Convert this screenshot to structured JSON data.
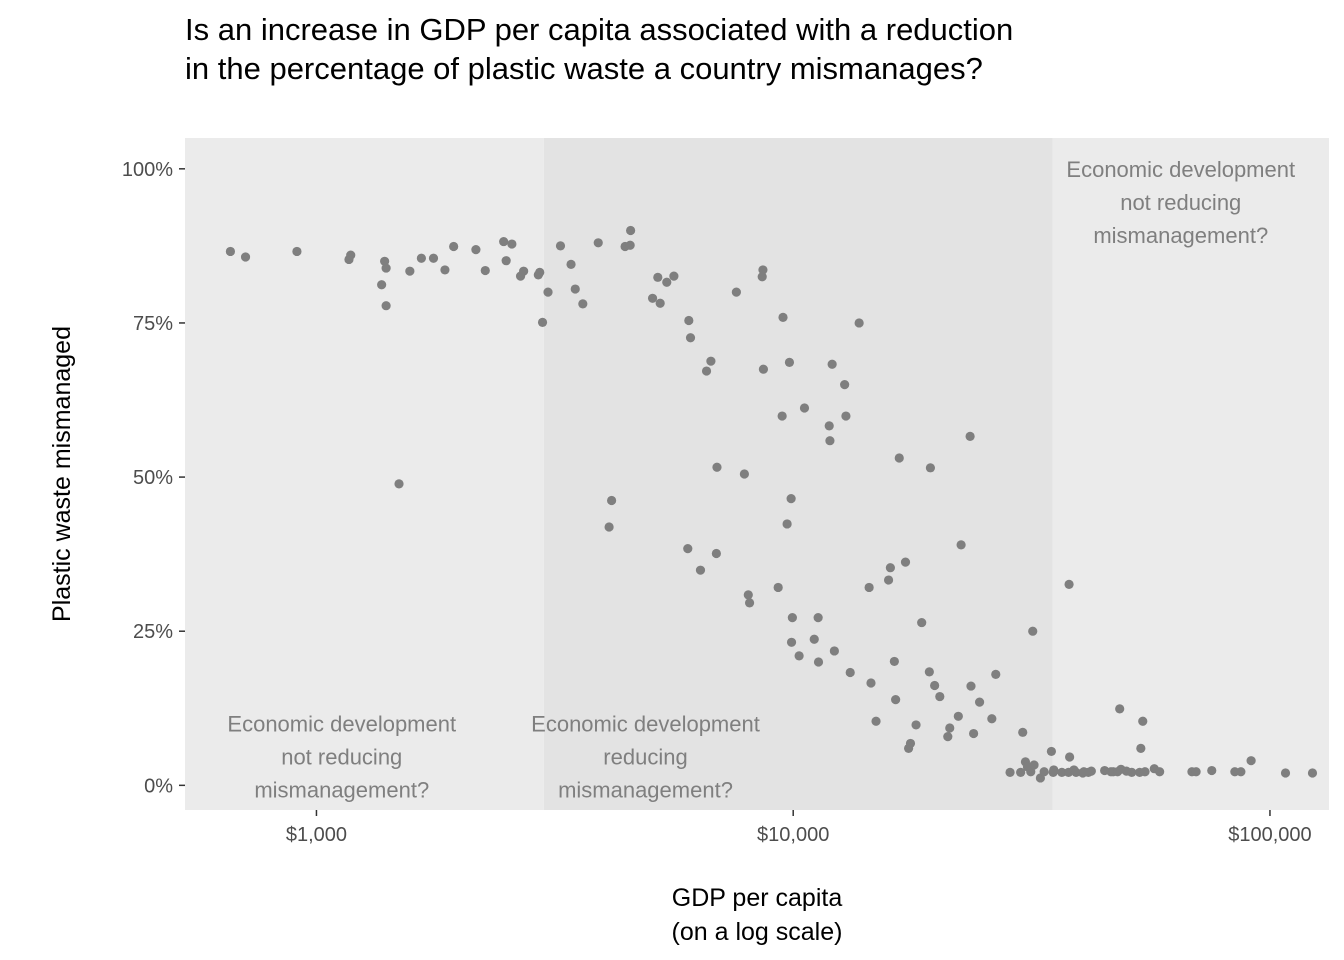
{
  "chart_data": {
    "type": "scatter",
    "title_lines": [
      "Is an increase in GDP per capita associated with a reduction",
      "in the percentage of plastic waste a country mismanages?"
    ],
    "xlabel_lines": [
      "GDP per capita",
      "(on a log scale)"
    ],
    "ylabel": "Plastic waste mismanaged",
    "x_scale": "log10",
    "xlim": [
      530,
      133000
    ],
    "ylim": [
      -0.04,
      1.05
    ],
    "x_ticks": [
      {
        "value": 1000,
        "label": "$1,000"
      },
      {
        "value": 10000,
        "label": "$10,000"
      },
      {
        "value": 100000,
        "label": "$100,000"
      }
    ],
    "y_ticks": [
      {
        "value": 0,
        "label": "0%"
      },
      {
        "value": 0.25,
        "label": "25%"
      },
      {
        "value": 0.5,
        "label": "50%"
      },
      {
        "value": 0.75,
        "label": "75%"
      },
      {
        "value": 1.0,
        "label": "100%"
      }
    ],
    "regions": [
      {
        "x_from": 530,
        "x_to": 3000,
        "fill": "#ebebeb",
        "annotation_lines": [
          "Economic development",
          "not reducing",
          "mismanagement?"
        ],
        "annotation_x": 1130,
        "annotation_y_top": 0.1
      },
      {
        "x_from": 3000,
        "x_to": 35000,
        "fill": "#e3e3e3",
        "annotation_lines": [
          "Economic development",
          "reducing",
          "mismanagement?"
        ],
        "annotation_x": 4900,
        "annotation_y_top": 0.1
      },
      {
        "x_from": 35000,
        "x_to": 133000,
        "fill": "#ebebeb",
        "annotation_lines": [
          "Economic development",
          "not reducing",
          "mismanagement?"
        ],
        "annotation_x": 65000,
        "annotation_y_top": 1.0
      }
    ],
    "point_color": "#7f7f7f",
    "grid": false,
    "legend": "none",
    "points": [
      [
        660,
        0.866
      ],
      [
        710,
        0.857
      ],
      [
        910,
        0.866
      ],
      [
        1170,
        0.853
      ],
      [
        1180,
        0.86
      ],
      [
        1370,
        0.812
      ],
      [
        1390,
        0.85
      ],
      [
        1400,
        0.839
      ],
      [
        1400,
        0.778
      ],
      [
        1490,
        0.489
      ],
      [
        1570,
        0.834
      ],
      [
        1660,
        0.855
      ],
      [
        1760,
        0.855
      ],
      [
        1860,
        0.836
      ],
      [
        1940,
        0.874
      ],
      [
        2160,
        0.869
      ],
      [
        2260,
        0.835
      ],
      [
        2470,
        0.882
      ],
      [
        2500,
        0.851
      ],
      [
        2570,
        0.878
      ],
      [
        2680,
        0.826
      ],
      [
        2720,
        0.834
      ],
      [
        2920,
        0.828
      ],
      [
        2940,
        0.832
      ],
      [
        2980,
        0.751
      ],
      [
        3060,
        0.8
      ],
      [
        3250,
        0.875
      ],
      [
        3420,
        0.845
      ],
      [
        3490,
        0.805
      ],
      [
        3620,
        0.781
      ],
      [
        3900,
        0.88
      ],
      [
        4110,
        0.419
      ],
      [
        4160,
        0.462
      ],
      [
        4440,
        0.874
      ],
      [
        4550,
        0.876
      ],
      [
        4560,
        0.9
      ],
      [
        5070,
        0.79
      ],
      [
        5200,
        0.824
      ],
      [
        5260,
        0.782
      ],
      [
        5430,
        0.816
      ],
      [
        5620,
        0.826
      ],
      [
        6010,
        0.384
      ],
      [
        6040,
        0.754
      ],
      [
        6090,
        0.726
      ],
      [
        6390,
        0.349
      ],
      [
        6580,
        0.672
      ],
      [
        6720,
        0.688
      ],
      [
        6900,
        0.376
      ],
      [
        6920,
        0.516
      ],
      [
        7600,
        0.8
      ],
      [
        7900,
        0.505
      ],
      [
        8050,
        0.309
      ],
      [
        8100,
        0.296
      ],
      [
        8610,
        0.825
      ],
      [
        8640,
        0.836
      ],
      [
        8660,
        0.675
      ],
      [
        9300,
        0.321
      ],
      [
        9480,
        0.599
      ],
      [
        9520,
        0.759
      ],
      [
        9710,
        0.424
      ],
      [
        9820,
        0.686
      ],
      [
        9900,
        0.465
      ],
      [
        9920,
        0.232
      ],
      [
        9960,
        0.272
      ],
      [
        10290,
        0.21
      ],
      [
        10560,
        0.612
      ],
      [
        11070,
        0.237
      ],
      [
        11280,
        0.272
      ],
      [
        11300,
        0.2
      ],
      [
        11900,
        0.583
      ],
      [
        11940,
        0.559
      ],
      [
        12070,
        0.683
      ],
      [
        12200,
        0.218
      ],
      [
        12820,
        0.65
      ],
      [
        12900,
        0.599
      ],
      [
        13170,
        0.183
      ],
      [
        13750,
        0.75
      ],
      [
        14430,
        0.321
      ],
      [
        14560,
        0.166
      ],
      [
        14920,
        0.104
      ],
      [
        15850,
        0.333
      ],
      [
        15990,
        0.353
      ],
      [
        16300,
        0.201
      ],
      [
        16400,
        0.139
      ],
      [
        16690,
        0.531
      ],
      [
        17200,
        0.362
      ],
      [
        17460,
        0.06
      ],
      [
        17620,
        0.068
      ],
      [
        18100,
        0.098
      ],
      [
        18600,
        0.264
      ],
      [
        19300,
        0.184
      ],
      [
        19400,
        0.515
      ],
      [
        19800,
        0.162
      ],
      [
        20300,
        0.144
      ],
      [
        21100,
        0.079
      ],
      [
        21300,
        0.093
      ],
      [
        22200,
        0.112
      ],
      [
        22500,
        0.39
      ],
      [
        23500,
        0.566
      ],
      [
        23600,
        0.161
      ],
      [
        23900,
        0.084
      ],
      [
        24600,
        0.135
      ],
      [
        26100,
        0.108
      ],
      [
        26600,
        0.18
      ],
      [
        28500,
        0.021
      ],
      [
        30000,
        0.021
      ],
      [
        30300,
        0.086
      ],
      [
        30700,
        0.038
      ],
      [
        31000,
        0.03
      ],
      [
        31500,
        0.022
      ],
      [
        31800,
        0.25
      ],
      [
        32000,
        0.033
      ],
      [
        33000,
        0.012
      ],
      [
        33600,
        0.022
      ],
      [
        34800,
        0.055
      ],
      [
        35100,
        0.021
      ],
      [
        35200,
        0.025
      ],
      [
        36600,
        0.021
      ],
      [
        37800,
        0.021
      ],
      [
        37900,
        0.326
      ],
      [
        38000,
        0.046
      ],
      [
        38800,
        0.025
      ],
      [
        39200,
        0.021
      ],
      [
        40500,
        0.02
      ],
      [
        40700,
        0.022
      ],
      [
        41600,
        0.021
      ],
      [
        42200,
        0.023
      ],
      [
        45000,
        0.024
      ],
      [
        46400,
        0.022
      ],
      [
        46900,
        0.022
      ],
      [
        47900,
        0.022
      ],
      [
        48400,
        0.124
      ],
      [
        48700,
        0.026
      ],
      [
        50000,
        0.023
      ],
      [
        51300,
        0.021
      ],
      [
        53300,
        0.021
      ],
      [
        53600,
        0.06
      ],
      [
        54100,
        0.104
      ],
      [
        54700,
        0.022
      ],
      [
        57200,
        0.027
      ],
      [
        58700,
        0.022
      ],
      [
        68600,
        0.022
      ],
      [
        70000,
        0.022
      ],
      [
        75500,
        0.024
      ],
      [
        84400,
        0.022
      ],
      [
        86900,
        0.022
      ],
      [
        91300,
        0.04
      ],
      [
        107800,
        0.02
      ],
      [
        122800,
        0.02
      ]
    ]
  }
}
